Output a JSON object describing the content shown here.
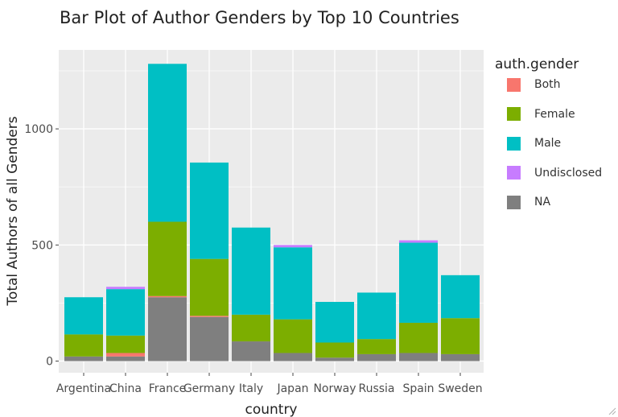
{
  "chart_data": {
    "type": "bar",
    "stacked": true,
    "title": "Bar Plot of Author Genders by Top 10 Countries",
    "xlabel": "country",
    "ylabel": "Total Authors of all Genders",
    "ylim": [
      -50,
      1340
    ],
    "yticks": [
      0,
      500,
      1000
    ],
    "ytick_labels": [
      "0",
      "500",
      "1000"
    ],
    "grid": true,
    "legend_title": "auth.gender",
    "legend_position": "right",
    "categories": [
      "Argentina",
      "China",
      "France",
      "Germany",
      "Italy",
      "Japan",
      "Norway",
      "Russia",
      "Spain",
      "Sweden"
    ],
    "series": [
      {
        "name": "NA",
        "color": "#7f7f7f",
        "values": [
          20,
          20,
          275,
          190,
          85,
          35,
          15,
          30,
          35,
          30
        ]
      },
      {
        "name": "Both",
        "color": "#f8766d",
        "values": [
          0,
          15,
          5,
          5,
          0,
          0,
          0,
          0,
          0,
          0
        ]
      },
      {
        "name": "Female",
        "color": "#7cae00",
        "values": [
          95,
          75,
          320,
          245,
          115,
          145,
          65,
          65,
          130,
          155
        ]
      },
      {
        "name": "Male",
        "color": "#00bfc4",
        "values": [
          160,
          200,
          680,
          415,
          375,
          310,
          175,
          200,
          345,
          185
        ]
      },
      {
        "name": "Undisclosed",
        "color": "#c77cff",
        "values": [
          0,
          10,
          0,
          0,
          0,
          10,
          0,
          0,
          10,
          0
        ]
      }
    ],
    "legend_order": [
      "Both",
      "Female",
      "Male",
      "Undisclosed",
      "NA"
    ]
  }
}
